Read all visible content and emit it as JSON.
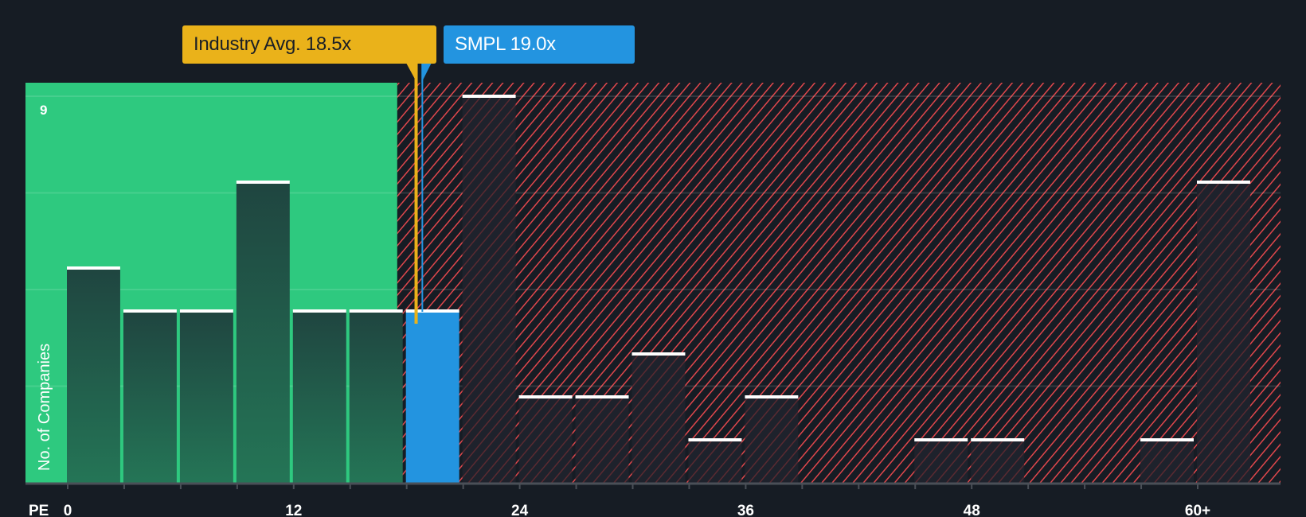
{
  "chart_data": {
    "type": "bar",
    "title": "",
    "xlabel": "PE",
    "ylabel": "No. of Companies",
    "x_tick_labels": [
      "0",
      "12",
      "24",
      "36",
      "48",
      "60+"
    ],
    "y_tick_labels": [
      "9"
    ],
    "ylim": [
      0,
      9
    ],
    "bin_width": 3,
    "categories": [
      "0-3",
      "3-6",
      "6-9",
      "9-12",
      "12-15",
      "15-18",
      "18-21",
      "21-24",
      "24-27",
      "27-30",
      "30-33",
      "33-36",
      "36-39",
      "39-42",
      "42-45",
      "45-48",
      "48-51",
      "51-54",
      "54-57",
      "57-60",
      "60+"
    ],
    "values": [
      5,
      4,
      4,
      7,
      4,
      4,
      4,
      9,
      2,
      2,
      3,
      1,
      2,
      0,
      0,
      1,
      1,
      0,
      0,
      1,
      7
    ],
    "highlight_bin": "18-21",
    "fair_zone_max": 17.5,
    "annotations": [
      {
        "label": "Industry Avg. 18.5x",
        "value": 18.5,
        "color": "#eab21a"
      },
      {
        "label": "SMPL 19.0x",
        "value": 19.0,
        "color": "#2394e0"
      }
    ],
    "colors": {
      "background": "#161c24",
      "undervalued_zone": "#2ec97f",
      "overvalued_hatch": "#e0474c",
      "bar_fill_green_zone": "#1f4a42",
      "bar_fill_red_zone": "#1e222c",
      "highlight_bar": "#2394e0",
      "bar_cap": "#ffffff"
    },
    "grid": true
  },
  "labels": {
    "industry_callout": "Industry Avg. 18.5x",
    "company_callout": "SMPL 19.0x",
    "y_axis_title": "No. of Companies",
    "x_axis_title": "PE",
    "y_top_tick": "9"
  }
}
